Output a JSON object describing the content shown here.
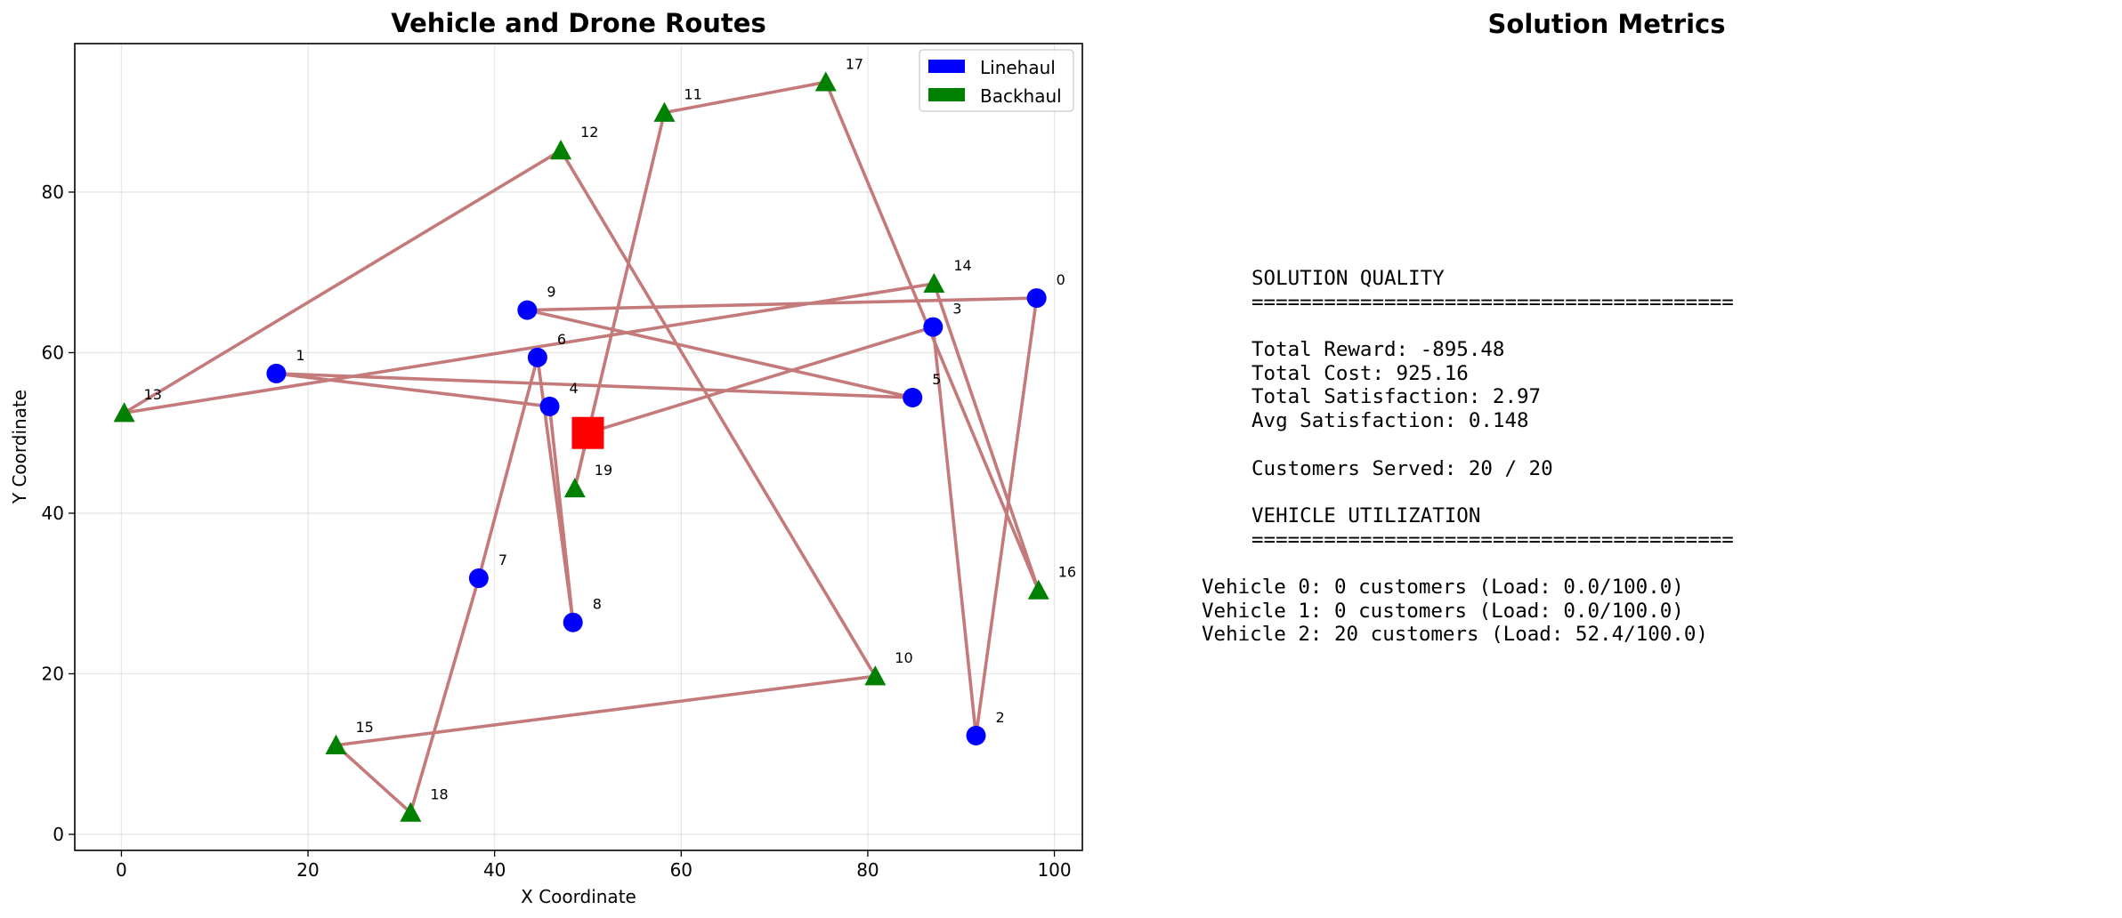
{
  "chart_data": {
    "type": "scatter",
    "title": "Vehicle and Drone Routes",
    "xlabel": "X Coordinate",
    "ylabel": "Y Coordinate",
    "xlim": [
      -5,
      103
    ],
    "ylim": [
      -2,
      98.5
    ],
    "xticks": [
      0,
      20,
      40,
      60,
      80,
      100
    ],
    "yticks": [
      0,
      20,
      40,
      60,
      80
    ],
    "grid": true,
    "legend_position": "top-right",
    "legend": [
      {
        "label": "Linehaul",
        "color": "#0000ff"
      },
      {
        "label": "Backhaul",
        "color": "#008000"
      }
    ],
    "depot": {
      "x": 50,
      "y": 50,
      "color": "#ff0000",
      "marker": "square"
    },
    "customers": [
      {
        "id": "0",
        "x": 98.1,
        "y": 66.8,
        "type": "linehaul"
      },
      {
        "id": "1",
        "x": 16.6,
        "y": 57.4,
        "type": "linehaul"
      },
      {
        "id": "2",
        "x": 91.6,
        "y": 12.3,
        "type": "linehaul"
      },
      {
        "id": "3",
        "x": 87.0,
        "y": 63.2,
        "type": "linehaul"
      },
      {
        "id": "4",
        "x": 45.9,
        "y": 53.3,
        "type": "linehaul"
      },
      {
        "id": "5",
        "x": 84.8,
        "y": 54.4,
        "type": "linehaul"
      },
      {
        "id": "6",
        "x": 44.6,
        "y": 59.4,
        "type": "linehaul"
      },
      {
        "id": "7",
        "x": 38.3,
        "y": 31.9,
        "type": "linehaul"
      },
      {
        "id": "8",
        "x": 48.4,
        "y": 26.4,
        "type": "linehaul"
      },
      {
        "id": "9",
        "x": 43.5,
        "y": 65.3,
        "type": "linehaul"
      },
      {
        "id": "10",
        "x": 80.8,
        "y": 19.7,
        "type": "backhaul"
      },
      {
        "id": "11",
        "x": 58.2,
        "y": 89.9,
        "type": "backhaul"
      },
      {
        "id": "12",
        "x": 47.1,
        "y": 85.2,
        "type": "backhaul"
      },
      {
        "id": "13",
        "x": 0.3,
        "y": 52.5,
        "type": "backhaul"
      },
      {
        "id": "14",
        "x": 87.1,
        "y": 68.6,
        "type": "backhaul"
      },
      {
        "id": "15",
        "x": 23.0,
        "y": 11.1,
        "type": "backhaul"
      },
      {
        "id": "16",
        "x": 98.3,
        "y": 30.4,
        "type": "backhaul"
      },
      {
        "id": "17",
        "x": 75.5,
        "y": 93.7,
        "type": "backhaul"
      },
      {
        "id": "18",
        "x": 31.0,
        "y": 2.7,
        "type": "backhaul"
      },
      {
        "id": "19",
        "x": 48.6,
        "y": 43.1,
        "type": "backhaul"
      }
    ],
    "route": [
      "depot",
      "3",
      "13",
      "14",
      "16",
      "17",
      "11",
      "19",
      "depot"
    ],
    "route_color": "#c47a7a",
    "segments": [
      [
        "depot",
        "3"
      ],
      [
        "3",
        "2"
      ],
      [
        "2",
        "0"
      ],
      [
        "0",
        "9"
      ],
      [
        "9",
        "5"
      ],
      [
        "5",
        "1"
      ],
      [
        "1",
        "4"
      ],
      [
        "4",
        "8"
      ],
      [
        "8",
        "6"
      ],
      [
        "6",
        "7"
      ],
      [
        "7",
        "18"
      ],
      [
        "18",
        "15"
      ],
      [
        "15",
        "10"
      ],
      [
        "10",
        "12"
      ],
      [
        "12",
        "13"
      ],
      [
        "13",
        "14"
      ],
      [
        "14",
        "16"
      ],
      [
        "16",
        "17"
      ],
      [
        "17",
        "11"
      ],
      [
        "11",
        "19"
      ],
      [
        "19",
        "depot"
      ]
    ]
  },
  "metrics": {
    "title": "Solution Metrics",
    "lines": [
      {
        "text": "SOLUTION QUALITY",
        "indent": true
      },
      {
        "text": "========================================",
        "indent": true
      },
      {
        "text": "",
        "indent": true
      },
      {
        "text": "Total Reward: -895.48",
        "indent": true
      },
      {
        "text": "Total Cost: 925.16",
        "indent": true
      },
      {
        "text": "Total Satisfaction: 2.97",
        "indent": true
      },
      {
        "text": "Avg Satisfaction: 0.148",
        "indent": true
      },
      {
        "text": "",
        "indent": true
      },
      {
        "text": "Customers Served: 20 / 20",
        "indent": true
      },
      {
        "text": "",
        "indent": true
      },
      {
        "text": "VEHICLE UTILIZATION",
        "indent": true
      },
      {
        "text": "========================================",
        "indent": true
      },
      {
        "text": "",
        "indent": true
      },
      {
        "text": "Vehicle 0: 0 customers (Load: 0.0/100.0)",
        "indent": false
      },
      {
        "text": "Vehicle 1: 0 customers (Load: 0.0/100.0)",
        "indent": false
      },
      {
        "text": "Vehicle 2: 20 customers (Load: 52.4/100.0)",
        "indent": false
      }
    ]
  }
}
